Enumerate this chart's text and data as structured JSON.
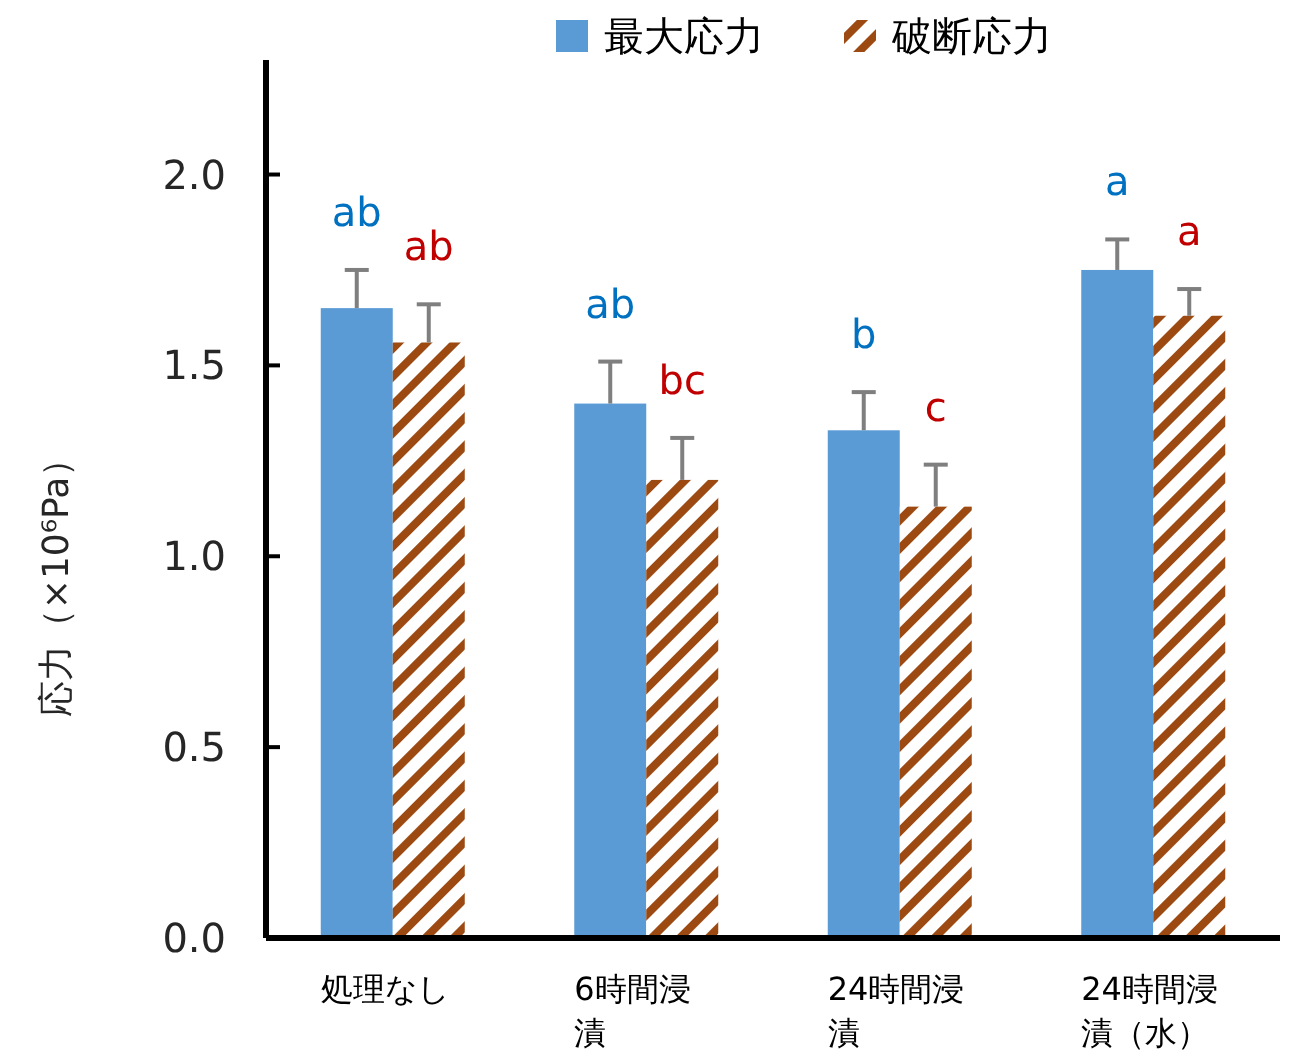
{
  "chart_data": {
    "type": "bar",
    "ylabel": "応力（×10⁶Pa）",
    "categories": [
      "処理なし",
      "6時間浸漬",
      "24時間浸漬",
      "24時間浸漬（水）"
    ],
    "series": [
      {
        "name": "最大応力",
        "color": "#5b9bd5",
        "values": [
          1.65,
          1.4,
          1.33,
          1.75
        ],
        "errors": [
          0.1,
          0.11,
          0.1,
          0.08
        ],
        "value_labels": [
          "ab",
          "ab",
          "b",
          "a"
        ]
      },
      {
        "name": "破断応力",
        "color": "#9c4a12",
        "values": [
          1.56,
          1.2,
          1.13,
          1.63
        ],
        "errors": [
          0.1,
          0.11,
          0.11,
          0.07
        ],
        "value_labels": [
          "ab",
          "bc",
          "c",
          "a"
        ]
      }
    ],
    "ylim": [
      0,
      2.3
    ],
    "yticks": [
      {
        "value": 0,
        "label": "0.0"
      },
      {
        "value": 0.5,
        "label": "0.5"
      },
      {
        "value": 1,
        "label": "1.0"
      },
      {
        "value": 1.5,
        "label": "1.5"
      },
      {
        "value": 2,
        "label": "2.0"
      }
    ],
    "grid": false,
    "legend": "top"
  }
}
